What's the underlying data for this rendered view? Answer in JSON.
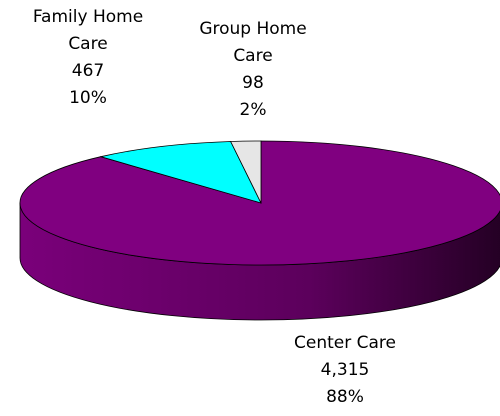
{
  "chart_data": {
    "type": "pie",
    "categories": [
      "Center Care",
      "Family Home Care",
      "Group Home Care"
    ],
    "values": [
      4315,
      467,
      98
    ],
    "value_labels": [
      "4,315",
      "467",
      "98"
    ],
    "percentages": [
      88,
      10,
      2
    ],
    "percentage_labels": [
      "88%",
      "10%",
      "2%"
    ],
    "colors": [
      "#800080",
      "#00ffff",
      "#e6e6e6"
    ]
  }
}
